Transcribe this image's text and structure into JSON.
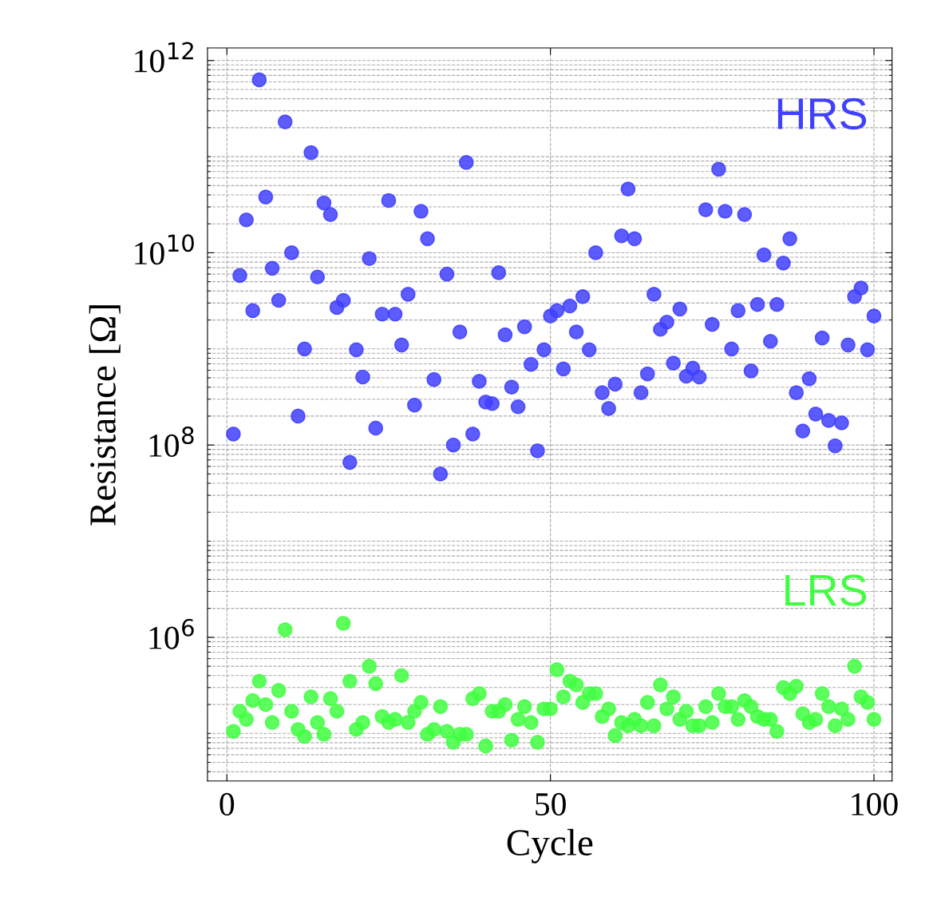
{
  "chart_data": {
    "type": "scatter",
    "xlabel": "Cycle",
    "ylabel": "Resistance [Ω]",
    "x": [
      1,
      2,
      3,
      4,
      5,
      6,
      7,
      8,
      9,
      10,
      11,
      12,
      13,
      14,
      15,
      16,
      17,
      18,
      19,
      20,
      21,
      22,
      23,
      24,
      25,
      26,
      27,
      28,
      29,
      30,
      31,
      32,
      33,
      34,
      35,
      36,
      37,
      38,
      39,
      40,
      41,
      42,
      43,
      44,
      45,
      46,
      47,
      48,
      49,
      50,
      51,
      52,
      53,
      54,
      55,
      56,
      57,
      58,
      59,
      60,
      61,
      62,
      63,
      64,
      65,
      66,
      67,
      68,
      69,
      70,
      71,
      72,
      73,
      74,
      75,
      76,
      77,
      78,
      79,
      80,
      81,
      82,
      83,
      84,
      85,
      86,
      87,
      88,
      89,
      90,
      91,
      92,
      93,
      94,
      95,
      96,
      97,
      98,
      99,
      100
    ],
    "series": [
      {
        "name": "HRS",
        "color": "#4040ff",
        "values": [
          130000000.0,
          5800000000.0,
          22000000000.0,
          2500000000.0,
          630000000000.0,
          38000000000.0,
          6900000000.0,
          3200000000.0,
          230000000000.0,
          10000000000.0,
          200000000.0,
          1000000000.0,
          110000000000.0,
          5600000000.0,
          33000000000.0,
          25000000000.0,
          2700000000.0,
          3200000000.0,
          66000000.0,
          980000000.0,
          510000000.0,
          8700000000.0,
          150000000.0,
          2300000000.0,
          35000000000.0,
          2300000000.0,
          1100000000.0,
          3700000000.0,
          260000000.0,
          27000000000.0,
          14000000000.0,
          480000000.0,
          50000000.0,
          6000000000.0,
          100000000.0,
          1500000000.0,
          87000000000.0,
          130000000.0,
          460000000.0,
          280000000.0,
          270000000.0,
          6200000000.0,
          1400000000.0,
          400000000.0,
          250000000.0,
          1700000000.0,
          690000000.0,
          87000000.0,
          980000000.0,
          2200000000.0,
          2500000000.0,
          620000000.0,
          2800000000.0,
          1500000000.0,
          3500000000.0,
          980000000.0,
          10000000000.0,
          350000000.0,
          240000000.0,
          430000000.0,
          15000000000.0,
          46000000000.0,
          14000000000.0,
          350000000.0,
          550000000.0,
          3700000000.0,
          1600000000.0,
          1900000000.0,
          710000000.0,
          2600000000.0,
          520000000.0,
          630000000.0,
          510000000.0,
          28000000000.0,
          1800000000.0,
          74000000000.0,
          27000000000.0,
          1000000000.0,
          2500000000.0,
          25000000000.0,
          590000000.0,
          2900000000.0,
          9500000000.0,
          1200000000.0,
          2900000000.0,
          7800000000.0,
          14000000000.0,
          350000000.0,
          140000000.0,
          490000000.0,
          210000000.0,
          1300000000.0,
          180000000.0,
          98000000.0,
          170000000.0,
          1100000000.0,
          3500000000.0,
          4300000000.0,
          980000000.0,
          2200000000.0
        ]
      },
      {
        "name": "LRS",
        "color": "#40ff40",
        "values": [
          105000.0,
          170000.0,
          140000.0,
          220000.0,
          350000.0,
          200000.0,
          130000.0,
          280000.0,
          1200000.0,
          170000.0,
          110000.0,
          93000.0,
          240000.0,
          130000.0,
          98000.0,
          230000.0,
          170000.0,
          1400000.0,
          350000.0,
          110000.0,
          130000.0,
          500000.0,
          330000.0,
          150000.0,
          130000.0,
          140000.0,
          400000.0,
          130000.0,
          170000.0,
          210000.0,
          98000.0,
          110000.0,
          190000.0,
          105000.0,
          81000.0,
          98000.0,
          98000.0,
          230000.0,
          260000.0,
          74000.0,
          170000.0,
          170000.0,
          200000.0,
          85000.0,
          140000.0,
          190000.0,
          130000.0,
          81000.0,
          180000.0,
          180000.0,
          460000.0,
          240000.0,
          350000.0,
          320000.0,
          210000.0,
          260000.0,
          260000.0,
          150000.0,
          180000.0,
          95000.0,
          130000.0,
          120000.0,
          140000.0,
          120000.0,
          210000.0,
          120000.0,
          320000.0,
          180000.0,
          240000.0,
          140000.0,
          170000.0,
          120000.0,
          120000.0,
          190000.0,
          130000.0,
          260000.0,
          190000.0,
          190000.0,
          140000.0,
          220000.0,
          190000.0,
          150000.0,
          140000.0,
          140000.0,
          105000.0,
          300000.0,
          260000.0,
          310000.0,
          160000.0,
          130000.0,
          140000.0,
          260000.0,
          190000.0,
          120000.0,
          180000.0,
          140000.0,
          500000.0,
          240000.0,
          210000.0,
          140000.0
        ]
      }
    ],
    "log": "y",
    "xlim": [
      -3,
      102.8
    ],
    "ylim": [
      32000.0,
      1350000000000.0
    ],
    "xticks": [
      0,
      50,
      100
    ],
    "yticks": [
      {
        "value": 1000000.0,
        "label": "10$^{6}$"
      },
      {
        "value": 100000000.0,
        "label": "10$^{8}$"
      },
      {
        "value": 10000000000.0,
        "label": "10$^{10}$"
      },
      {
        "value": 1000000000000.0,
        "label": "10$^{12}$"
      }
    ],
    "grid": true,
    "marker": "circle",
    "legend": false
  }
}
